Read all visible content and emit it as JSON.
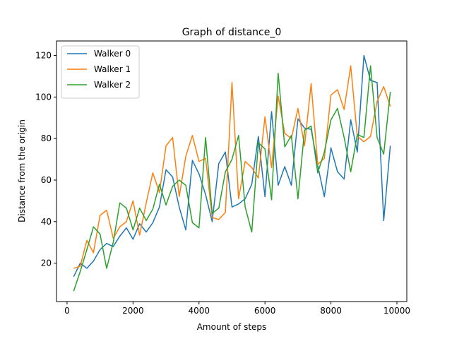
{
  "chart_data": {
    "type": "line",
    "title": "Graph of distance_0",
    "xlabel": "Amount of steps",
    "ylabel": "Distance from the origin",
    "xlim": [
      -320,
      10300
    ],
    "ylim": [
      1.5,
      127
    ],
    "x_ticks": [
      0,
      2000,
      4000,
      6000,
      8000,
      10000
    ],
    "y_ticks": [
      20,
      40,
      60,
      80,
      100,
      120
    ],
    "grid": false,
    "legend_position": "top-left",
    "x": [
      200,
      400,
      600,
      800,
      1000,
      1200,
      1400,
      1600,
      1800,
      2000,
      2200,
      2400,
      2600,
      2800,
      3000,
      3200,
      3400,
      3600,
      3800,
      4000,
      4200,
      4400,
      4600,
      4800,
      5000,
      5200,
      5400,
      5600,
      5800,
      6000,
      6200,
      6400,
      6600,
      6800,
      7000,
      7200,
      7400,
      7600,
      7800,
      8000,
      8200,
      8400,
      8600,
      8800,
      9000,
      9200,
      9400,
      9600,
      9800
    ],
    "series": [
      {
        "name": "Walker 0",
        "color": "#1f77b4",
        "values": [
          13.5,
          20,
          17.5,
          21,
          26.5,
          29.5,
          28,
          33,
          37,
          31.5,
          39,
          35,
          39.5,
          47,
          65,
          61.5,
          47,
          36,
          69.5,
          63,
          53,
          40,
          68,
          73.5,
          47,
          48.5,
          51,
          58,
          81,
          52,
          93,
          57.5,
          66.5,
          57.5,
          89.5,
          85,
          84.5,
          67,
          52,
          75.5,
          64,
          60.5,
          89,
          73.5,
          120,
          108,
          107,
          40.5,
          76.5
        ]
      },
      {
        "name": "Walker 1",
        "color": "#ff7f0e",
        "values": [
          17.5,
          18.5,
          31,
          25,
          43,
          45.5,
          32,
          37.5,
          40,
          50,
          33.5,
          49,
          63.5,
          54,
          76.5,
          80.5,
          52,
          71.5,
          81.5,
          69,
          70.5,
          42,
          41,
          44.5,
          107,
          51,
          69,
          66,
          61,
          90.5,
          66,
          100.5,
          82.5,
          80,
          94.5,
          76.5,
          106.5,
          67.5,
          70.5,
          101,
          103.5,
          94,
          115,
          81,
          78.5,
          81,
          98,
          105,
          95.5
        ]
      },
      {
        "name": "Walker 2",
        "color": "#2ca02c",
        "values": [
          6.5,
          16,
          26.5,
          37.5,
          34,
          17.5,
          30,
          49,
          46.5,
          36,
          46.5,
          40.5,
          46,
          58,
          48,
          57,
          60,
          57.5,
          39.5,
          37,
          80.5,
          44,
          46.5,
          64,
          70,
          81.5,
          47,
          35,
          78,
          75,
          50.5,
          111.5,
          76,
          81.5,
          51,
          84,
          86,
          63.5,
          73.5,
          89,
          94.5,
          80.5,
          64,
          82,
          80.5,
          115,
          80.5,
          72.5,
          102.5
        ]
      }
    ]
  }
}
